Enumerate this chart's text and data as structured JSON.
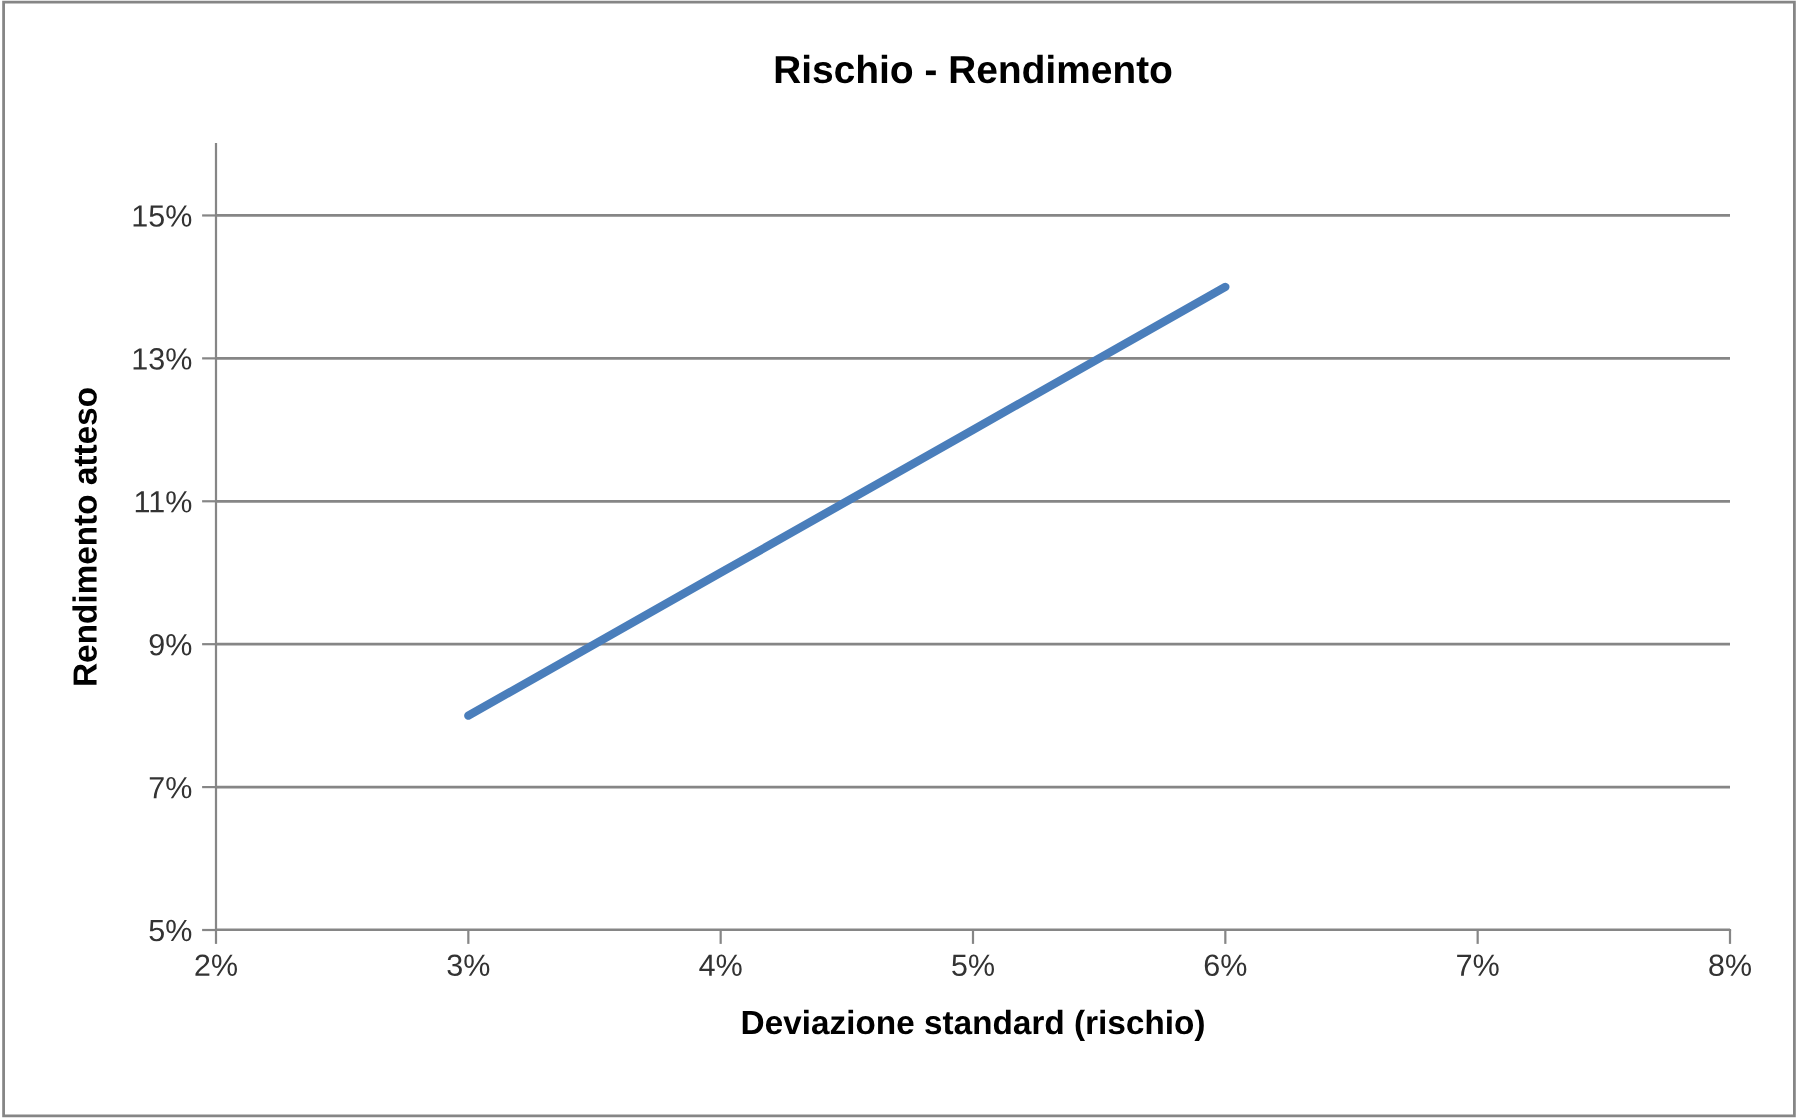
{
  "chart_data": {
    "type": "line",
    "title": "Rischio - Rendimento",
    "xlabel": "Deviazione standard (rischio)",
    "ylabel": "Rendimento atteso",
    "x": [
      3,
      4,
      5,
      6
    ],
    "series": [
      {
        "color": "#4a7ebb",
        "values": [
          8,
          10,
          12,
          14
        ]
      }
    ],
    "xlim": [
      2,
      8
    ],
    "xticks": [
      {
        "value": 2,
        "label": "2%"
      },
      {
        "value": 3,
        "label": "3%"
      },
      {
        "value": 4,
        "label": "4%"
      },
      {
        "value": 5,
        "label": "5%"
      },
      {
        "value": 6,
        "label": "6%"
      },
      {
        "value": 7,
        "label": "7%"
      },
      {
        "value": 8,
        "label": "8%"
      }
    ],
    "ylim": [
      5,
      16
    ],
    "yticks": [
      {
        "value": 5,
        "label": "5%"
      },
      {
        "value": 7,
        "label": "7%"
      },
      {
        "value": 9,
        "label": "9%"
      },
      {
        "value": 11,
        "label": "11%"
      },
      {
        "value": 13,
        "label": "13%"
      },
      {
        "value": 15,
        "label": "15%"
      }
    ],
    "grid": "y",
    "legend": false,
    "marker": "none",
    "line_style": "solid"
  }
}
